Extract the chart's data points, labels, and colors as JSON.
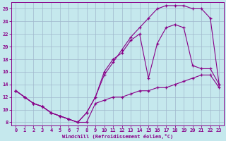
{
  "xlabel": "Windchill (Refroidissement éolien,°C)",
  "bg_color": "#c5e8ed",
  "line_color": "#880088",
  "xlim": [
    -0.5,
    23.5
  ],
  "ylim": [
    7.5,
    27
  ],
  "xticks": [
    0,
    1,
    2,
    3,
    4,
    5,
    6,
    7,
    8,
    9,
    10,
    11,
    12,
    13,
    14,
    15,
    16,
    17,
    18,
    19,
    20,
    21,
    22,
    23
  ],
  "yticks": [
    8,
    10,
    12,
    14,
    16,
    18,
    20,
    22,
    24,
    26
  ],
  "grid_color": "#a0b8cc",
  "curve1_x": [
    0,
    1,
    2,
    3,
    4,
    5,
    6,
    7,
    8,
    9,
    10,
    11,
    12,
    13,
    14,
    15,
    16,
    17,
    18,
    19,
    20,
    21,
    22,
    23
  ],
  "curve1_y": [
    13.0,
    12.0,
    11.0,
    10.5,
    9.5,
    9.0,
    8.5,
    8.0,
    8.0,
    11.0,
    11.5,
    12.0,
    12.0,
    12.5,
    13.0,
    13.0,
    13.5,
    13.5,
    14.0,
    14.5,
    15.0,
    15.5,
    15.5,
    13.5
  ],
  "curve2_x": [
    0,
    1,
    2,
    3,
    4,
    5,
    6,
    7,
    8,
    9,
    10,
    11,
    12,
    13,
    14,
    15,
    16,
    17,
    18,
    19,
    20,
    21,
    22,
    23
  ],
  "curve2_y": [
    13.0,
    12.0,
    11.0,
    10.5,
    9.5,
    9.0,
    8.5,
    8.0,
    9.5,
    12.0,
    15.5,
    17.5,
    19.5,
    21.5,
    23.0,
    24.5,
    26.0,
    26.5,
    26.5,
    26.5,
    26.0,
    26.0,
    24.5,
    14.0
  ],
  "curve3_x": [
    0,
    1,
    2,
    3,
    4,
    5,
    6,
    7,
    8,
    9,
    10,
    11,
    12,
    13,
    14,
    15,
    16,
    17,
    18,
    19,
    20,
    21,
    22,
    23
  ],
  "curve3_y": [
    13.0,
    12.0,
    11.0,
    10.5,
    9.5,
    9.0,
    8.5,
    8.0,
    9.5,
    12.0,
    16.0,
    18.0,
    19.0,
    21.0,
    22.0,
    15.0,
    20.5,
    23.0,
    23.5,
    23.0,
    17.0,
    16.5,
    16.5,
    14.0
  ]
}
